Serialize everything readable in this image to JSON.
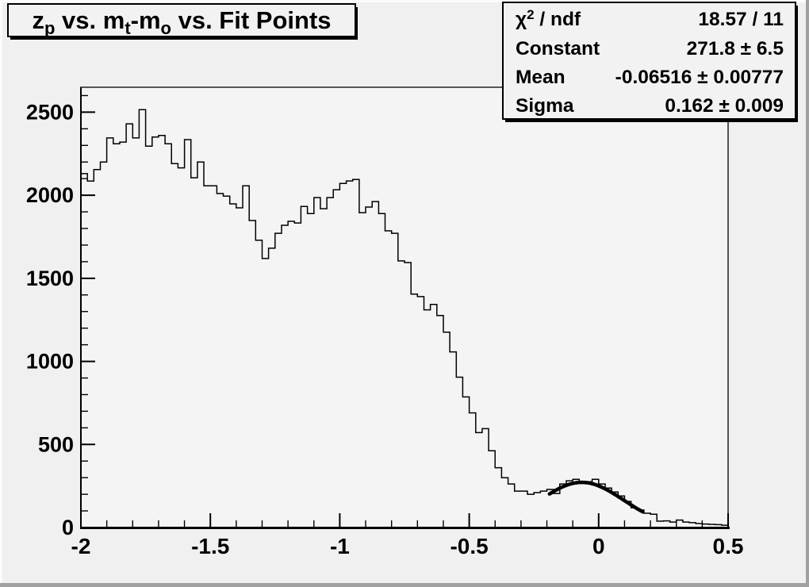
{
  "window": {
    "kind": "root-canvas-plot"
  },
  "title": {
    "plain": "z_p vs. m_t-m_o vs. Fit Points",
    "parts": [
      {
        "text": "z"
      },
      {
        "text": "p",
        "sub": true
      },
      {
        "text": " vs. m"
      },
      {
        "text": "t",
        "sub": true
      },
      {
        "text": "-m"
      },
      {
        "text": "o",
        "sub": true
      },
      {
        "text": " vs. Fit Points"
      }
    ]
  },
  "stats_box": {
    "rows": [
      {
        "label_plain": "χ2 / ndf",
        "label_parts": [
          {
            "text": "χ"
          },
          {
            "text": "2",
            "sup": true
          },
          {
            "text": " / ndf"
          }
        ],
        "value": "18.57 / 11"
      },
      {
        "label_plain": "Constant",
        "label_parts": [
          {
            "text": "Constant"
          }
        ],
        "value": "271.8 ± 6.5"
      },
      {
        "label_plain": "Mean",
        "label_parts": [
          {
            "text": "Mean"
          }
        ],
        "value": "-0.06516 ± 0.00777"
      },
      {
        "label_plain": "Sigma",
        "label_parts": [
          {
            "text": "Sigma"
          }
        ],
        "value": "0.162 ± 0.009"
      }
    ]
  },
  "axes": {
    "x": {
      "tick_labels": [
        "-2",
        "-1.5",
        "-1",
        "-0.5",
        "0",
        "0.5"
      ],
      "tick_values": [
        -2,
        -1.5,
        -1,
        -0.5,
        0,
        0.5
      ],
      "minor_step": 0.1
    },
    "y": {
      "tick_labels": [
        "0",
        "500",
        "1000",
        "1500",
        "2000",
        "2500"
      ],
      "tick_values": [
        0,
        500,
        1000,
        1500,
        2000,
        2500
      ],
      "minor_step": 100
    }
  },
  "colors": {
    "canvas_bg": "#f0f0f0",
    "frame_bg": "#f4f4f4",
    "box_bg": "#f2f2f2",
    "line": "#000000",
    "bevel_light": "#fcfcfc",
    "bevel_dark": "#a0a0a0"
  },
  "chart_data": {
    "type": "bar",
    "subtype": "step-histogram-with-gaussian-fit",
    "title": "z_p vs. m_t-m_o vs. Fit Points",
    "xlabel": "",
    "ylabel": "",
    "xlim": [
      -2.0,
      0.5
    ],
    "ylim": [
      0,
      2650
    ],
    "x_ticks": [
      -2,
      -1.5,
      -1,
      -0.5,
      0,
      0.5
    ],
    "y_ticks": [
      0,
      500,
      1000,
      1500,
      2000,
      2500
    ],
    "grid": false,
    "legend": false,
    "x_start": -2.0,
    "bin_width": 0.025,
    "n_bins": 100,
    "values": [
      2130,
      2085,
      2155,
      2200,
      2345,
      2310,
      2320,
      2430,
      2345,
      2515,
      2295,
      2350,
      2360,
      2310,
      2190,
      2165,
      2335,
      2105,
      2200,
      2057,
      2057,
      2010,
      1995,
      1948,
      1924,
      2057,
      1848,
      1729,
      1619,
      1681,
      1771,
      1819,
      1843,
      1833,
      1933,
      1890,
      1986,
      1919,
      1986,
      2033,
      2071,
      2086,
      2095,
      1895,
      1929,
      1962,
      1890,
      1786,
      1771,
      1605,
      1595,
      1405,
      1390,
      1310,
      1343,
      1276,
      1176,
      1057,
      905,
      786,
      690,
      571,
      595,
      462,
      360,
      300,
      262,
      219,
      219,
      200,
      210,
      219,
      229,
      205,
      262,
      281,
      290,
      271,
      276,
      290,
      262,
      238,
      214,
      190,
      157,
      119,
      105,
      86,
      80,
      38,
      40,
      33,
      45,
      33,
      29,
      24,
      21,
      19,
      17,
      14
    ],
    "fit": {
      "model": "gaussian",
      "chi2_ndf": "18.57 / 11",
      "constant": 271.8,
      "constant_err": 6.5,
      "mean": -0.06516,
      "mean_err": 0.00777,
      "sigma": 0.162,
      "sigma_err": 0.009,
      "draw_range": [
        -0.19,
        0.17
      ]
    }
  }
}
